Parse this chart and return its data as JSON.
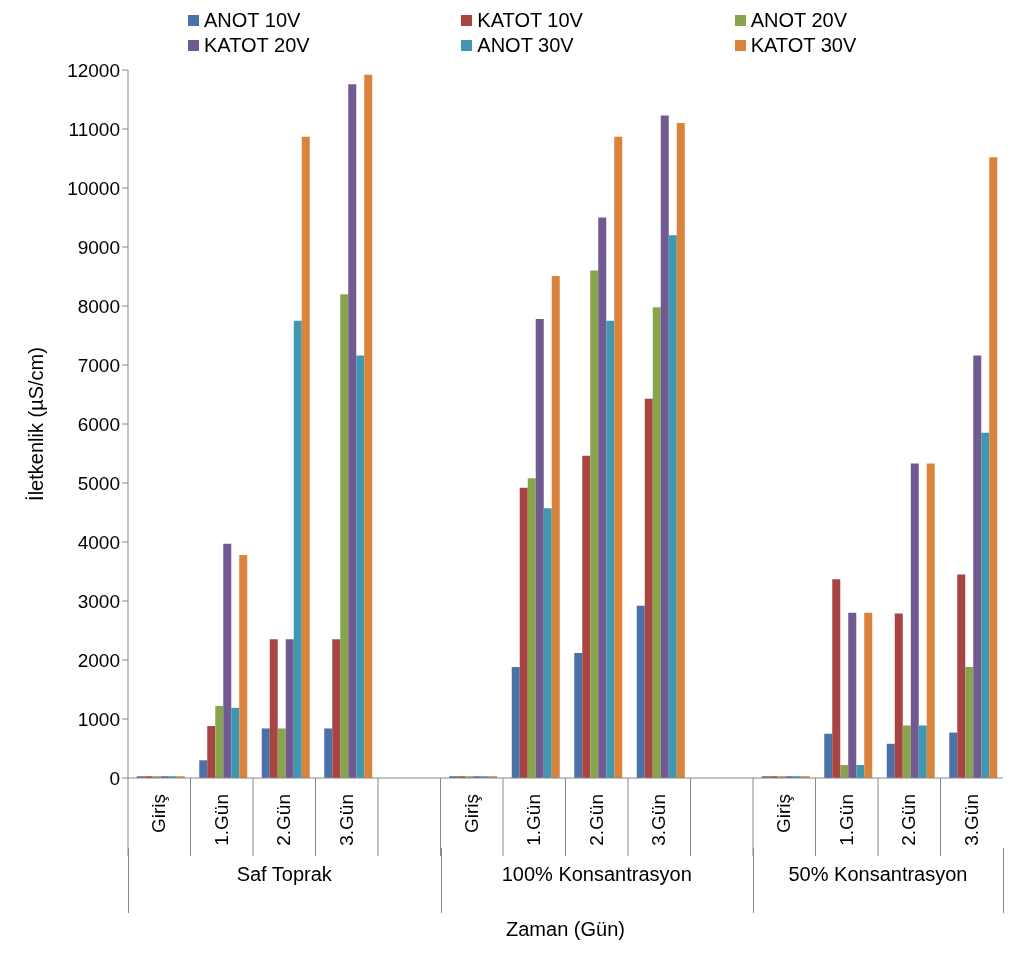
{
  "chart_data": {
    "type": "bar",
    "xlabel": "Zaman (Gün)",
    "ylabel": "İletkenlik (µS/cm)",
    "categories": [
      "Giriş",
      "1.Gün",
      "2.Gün",
      "3.Gün",
      null,
      "Giriş",
      "1.Gün",
      "2.Gün",
      "3.Gün",
      null,
      "Giriş",
      "1.Gün",
      "2.Gün",
      "3.Gün"
    ],
    "annotations": [
      "Saf Toprak",
      "100% Konsantrasyon",
      "50% Konsantrasyon"
    ],
    "series": [
      {
        "name": "ANOT 10V",
        "color": "#4a72a8",
        "values": [
          30,
          300,
          840,
          840,
          null,
          30,
          1880,
          2120,
          2920,
          null,
          30,
          750,
          580,
          770
        ]
      },
      {
        "name": "KATOT 10V",
        "color": "#a84442",
        "values": [
          30,
          880,
          2350,
          2350,
          null,
          30,
          4920,
          5460,
          6430,
          null,
          30,
          3370,
          2790,
          3450
        ]
      },
      {
        "name": "ANOT 20V",
        "color": "#88a54e",
        "values": [
          30,
          1220,
          840,
          8200,
          null,
          30,
          5080,
          8600,
          7980,
          null,
          30,
          220,
          890,
          1880
        ]
      },
      {
        "name": "KATOT 20V",
        "color": "#705a91",
        "values": [
          30,
          3970,
          2350,
          11760,
          null,
          30,
          7780,
          9500,
          11230,
          null,
          30,
          2800,
          5330,
          7160
        ]
      },
      {
        "name": "ANOT 30V",
        "color": "#4098b0",
        "values": [
          30,
          1190,
          7750,
          7160,
          null,
          30,
          4570,
          7750,
          9200,
          null,
          30,
          220,
          890,
          5850
        ]
      },
      {
        "name": "KATOT 30V",
        "color": "#da833b",
        "values": [
          30,
          3780,
          10870,
          11920,
          null,
          30,
          8510,
          10870,
          11100,
          null,
          30,
          2800,
          5330,
          10520
        ]
      }
    ],
    "ylim": [
      0,
      12000
    ],
    "yticks": [
      0,
      1000,
      2000,
      3000,
      4000,
      5000,
      6000,
      7000,
      8000,
      9000,
      10000,
      11000,
      12000
    ],
    "legend": "top"
  }
}
